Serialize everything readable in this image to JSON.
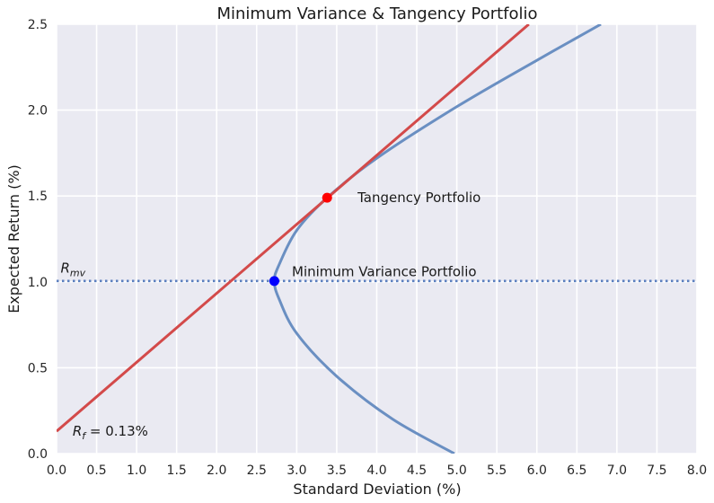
{
  "chart_data": {
    "type": "line",
    "title": "Minimum Variance & Tangency Portfolio",
    "xlabel": "Standard Deviation (%)",
    "ylabel": "Expected Return (%)",
    "xlim": [
      0.0,
      8.0
    ],
    "ylim": [
      0.0,
      2.5
    ],
    "x_ticks": [
      "0.0",
      "0.5",
      "1.0",
      "1.5",
      "2.0",
      "2.5",
      "3.0",
      "3.5",
      "4.0",
      "4.5",
      "5.0",
      "5.5",
      "6.0",
      "6.5",
      "7.0",
      "7.5",
      "8.0"
    ],
    "y_ticks": [
      "0.0",
      "0.5",
      "1.0",
      "1.5",
      "2.0",
      "2.5"
    ],
    "grid": true,
    "background": "#EAEAF2",
    "frontier": {
      "color": "#6A8FC2",
      "min_variance_std": 2.72,
      "min_variance_return": 1.005,
      "points": [
        {
          "x": 4.97,
          "y": 0.0
        },
        {
          "x": 4.2,
          "y": 0.2
        },
        {
          "x": 3.5,
          "y": 0.45
        },
        {
          "x": 3.0,
          "y": 0.7
        },
        {
          "x": 2.78,
          "y": 0.9
        },
        {
          "x": 2.72,
          "y": 1.005
        },
        {
          "x": 2.78,
          "y": 1.1
        },
        {
          "x": 3.0,
          "y": 1.3
        },
        {
          "x": 3.38,
          "y": 1.49
        },
        {
          "x": 4.0,
          "y": 1.72
        },
        {
          "x": 5.0,
          "y": 2.02
        },
        {
          "x": 6.0,
          "y": 2.29
        },
        {
          "x": 6.8,
          "y": 2.5
        }
      ]
    },
    "cml": {
      "color": "#D34A4A",
      "points": [
        {
          "x": 0.0,
          "y": 0.13
        },
        {
          "x": 5.9,
          "y": 2.5
        }
      ]
    },
    "rmv_line": {
      "y": 1.005,
      "color": "#5B7FBF"
    },
    "tangency_point": {
      "x": 3.38,
      "y": 1.49,
      "color": "#FF0000"
    },
    "min_variance_point": {
      "x": 2.72,
      "y": 1.005,
      "color": "#0000FF"
    },
    "annotations": {
      "tangency": {
        "text": "Tangency Portfolio",
        "x": 3.76,
        "y": 1.49
      },
      "min_variance": {
        "text": "Minimum Variance Portfolio",
        "x": 2.94,
        "y": 1.055
      },
      "rmv": {
        "main": "R",
        "sub": "mv",
        "x": 0.05,
        "y": 1.055
      },
      "rf": {
        "main": "R",
        "sub": "f",
        "suffix": " = 0.13%",
        "x": 0.2,
        "y": 0.13
      }
    }
  }
}
